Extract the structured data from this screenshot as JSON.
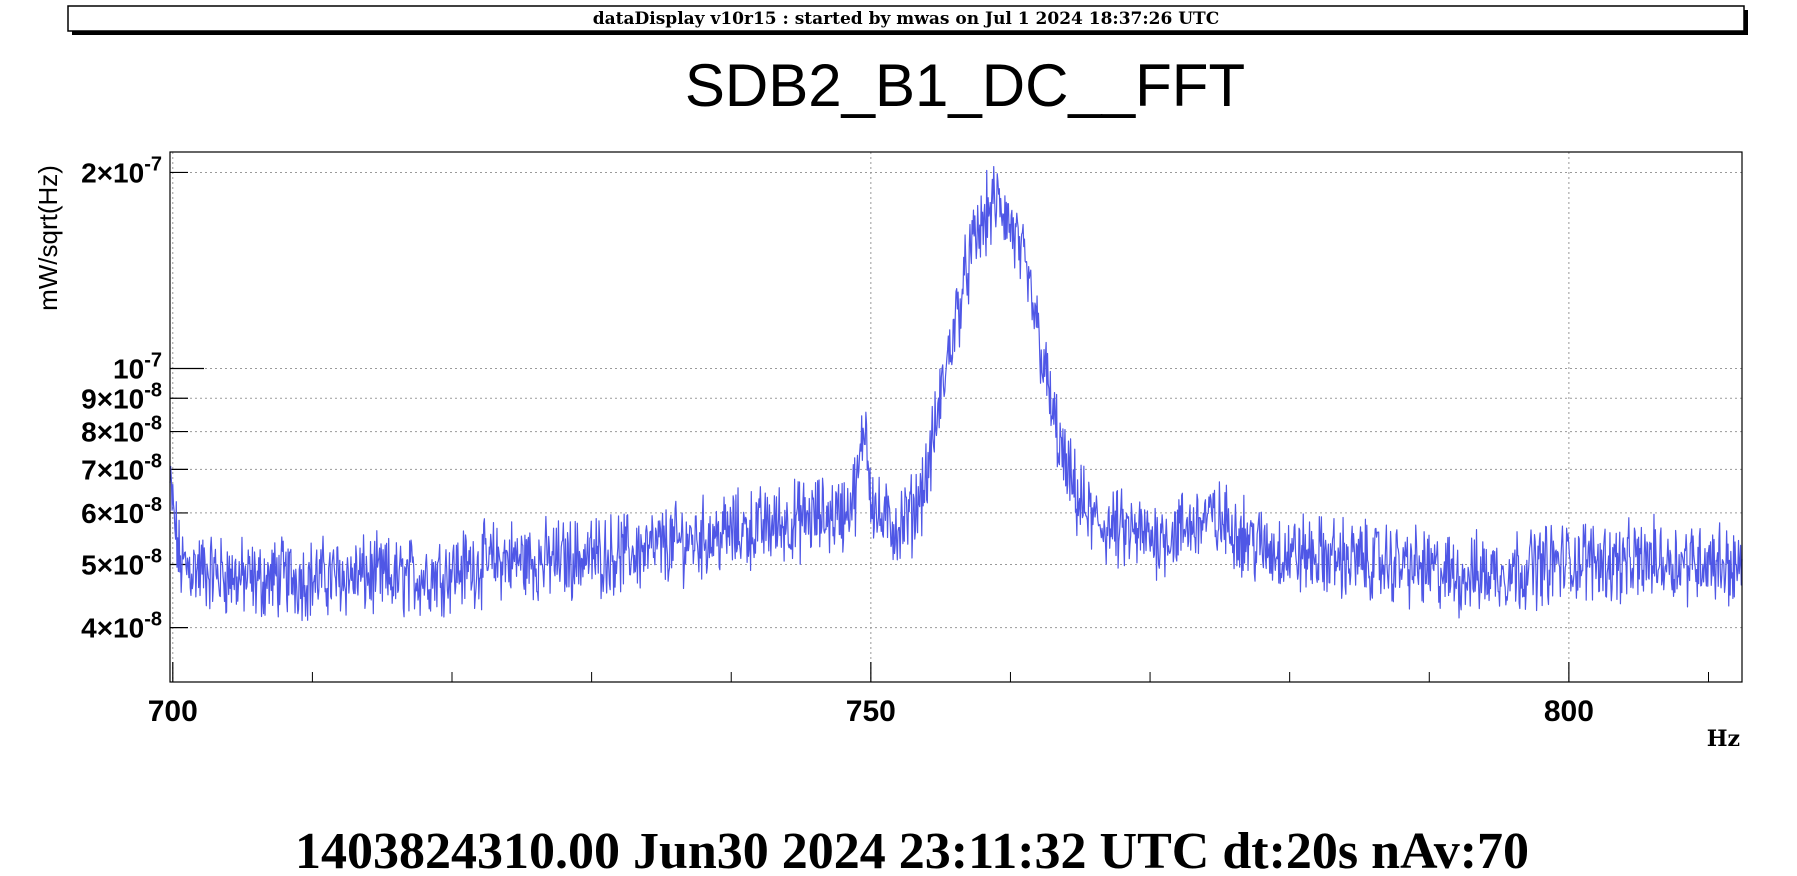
{
  "header": {
    "text": "dataDisplay v10r15 : started by mwas on Jul  1 2024 18:37:26 UTC"
  },
  "footer": {
    "text": "1403824310.00 Jun30 2024 23:11:32 UTC dt:20s nAv:70"
  },
  "colors": {
    "trace": "#4f57e6",
    "grid": "#9a9a9a",
    "axis": "#000000"
  },
  "chart_data": {
    "type": "line",
    "title": "SDB2_B1_DC__FFT",
    "xlabel": "Hz",
    "ylabel": "mW/sqrt(Hz)",
    "xlim": [
      699.8,
      812.4
    ],
    "ylim": [
      3.3e-08,
      2.15e-07
    ],
    "yscale": "log",
    "grid": true,
    "x_ticks": [
      {
        "value": 700,
        "label": "700"
      },
      {
        "value": 750,
        "label": "750"
      },
      {
        "value": 800,
        "label": "800"
      }
    ],
    "x_minor_ticks": [
      710,
      720,
      730,
      740,
      760,
      770,
      780,
      790,
      810
    ],
    "y_ticks": [
      {
        "value": 4e-08,
        "label": "4×10-8"
      },
      {
        "value": 5e-08,
        "label": "5×10-8"
      },
      {
        "value": 6e-08,
        "label": "6×10-8"
      },
      {
        "value": 7e-08,
        "label": "7×10-8"
      },
      {
        "value": 8e-08,
        "label": "8×10-8"
      },
      {
        "value": 9e-08,
        "label": "9×10-8"
      },
      {
        "value": 1e-07,
        "label": "10-7"
      },
      {
        "value": 2e-07,
        "label": "2×10-7"
      }
    ],
    "series": [
      {
        "color": "#4f57e6",
        "x": [
          699.8,
          700.5,
          702,
          704,
          706,
          708,
          710,
          712,
          714,
          716,
          718,
          720,
          722,
          724,
          726,
          728,
          730,
          732,
          734,
          736,
          738,
          740,
          742,
          744,
          746,
          748,
          749,
          749.6,
          750,
          750.5,
          751,
          752,
          753,
          754,
          754.5,
          755,
          755.5,
          756,
          756.5,
          757,
          757.5,
          758,
          758.5,
          759,
          759.5,
          760,
          760.5,
          761,
          761.5,
          762,
          762.5,
          763,
          764,
          765,
          766,
          768,
          770,
          772,
          774,
          776,
          778,
          780,
          782,
          784,
          786,
          788,
          790,
          792,
          794,
          796,
          798,
          800,
          802,
          804,
          806,
          808,
          810,
          812.4
        ],
        "y": [
          6.6e-08,
          5e-08,
          4.9e-08,
          4.8e-08,
          4.7e-08,
          4.8e-08,
          4.75e-08,
          4.8e-08,
          4.8e-08,
          4.75e-08,
          4.8e-08,
          4.9e-08,
          5e-08,
          5.1e-08,
          5.05e-08,
          5.1e-08,
          5.15e-08,
          5.2e-08,
          5.25e-08,
          5.4e-08,
          5.5e-08,
          5.6e-08,
          5.7e-08,
          5.8e-08,
          5.9e-08,
          6e-08,
          6.5e-08,
          8.4e-08,
          6.5e-08,
          5.9e-08,
          5.8e-08,
          5.7e-08,
          6e-08,
          6.8e-08,
          7.8e-08,
          9e-08,
          1.03e-07,
          1.17e-07,
          1.3e-07,
          1.45e-07,
          1.58e-07,
          1.66e-07,
          1.75e-07,
          1.8e-07,
          1.75e-07,
          1.65e-07,
          1.55e-07,
          1.42e-07,
          1.28e-07,
          1.13e-07,
          9.8e-08,
          8.5e-08,
          6.9e-08,
          6.2e-08,
          5.8e-08,
          5.6e-08,
          5.5e-08,
          5.6e-08,
          5.9e-08,
          5.7e-08,
          5.3e-08,
          5.2e-08,
          5.15e-08,
          5.1e-08,
          5.05e-08,
          5e-08,
          4.9e-08,
          4.8e-08,
          4.85e-08,
          4.9e-08,
          5e-08,
          5.05e-08,
          5.1e-08,
          5e-08,
          5.1e-08,
          5.05e-08,
          5.1e-08,
          4.9e-08
        ]
      }
    ]
  }
}
